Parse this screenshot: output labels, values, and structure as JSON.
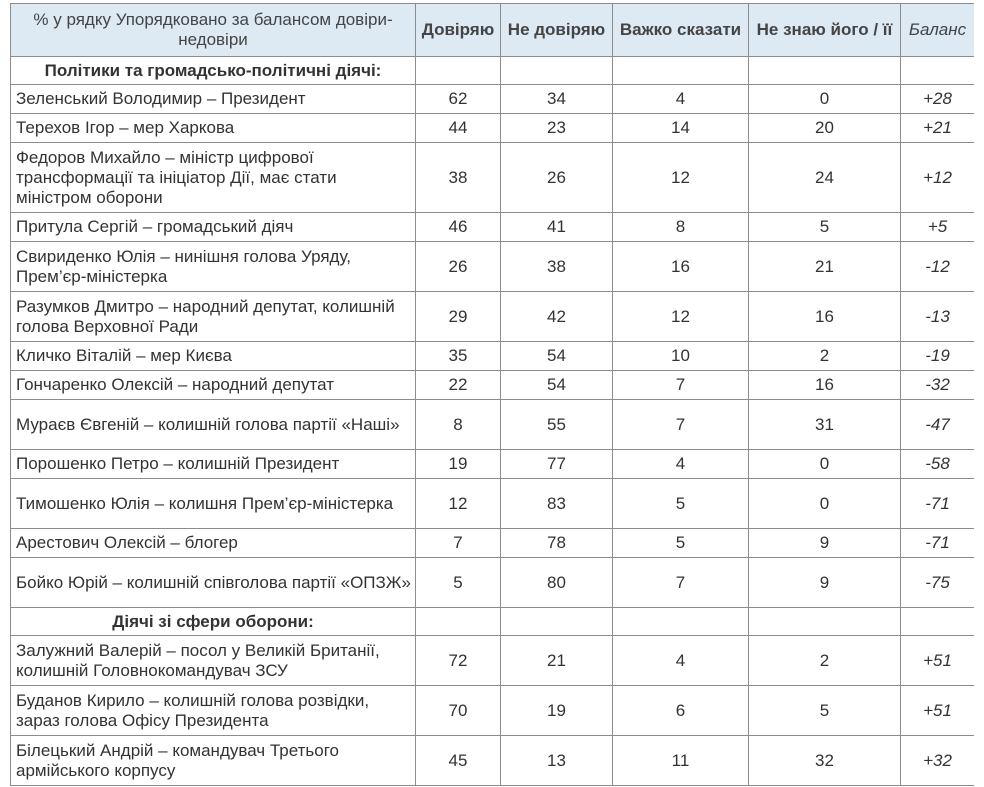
{
  "table": {
    "header_label": "% у рядку Упорядковано за балансом довіри-недовіри",
    "columns": [
      "Довіряю",
      "Не довіряю",
      "Важко сказати",
      "Не знаю його / її",
      "Баланс"
    ]
  },
  "sections": [
    {
      "title": "Політики та громадсько-політичні діячі:",
      "rows": [
        {
          "name": "Зеленський Володимир – Президент",
          "values": [
            "62",
            "34",
            "4",
            "0"
          ],
          "balance": "+28"
        },
        {
          "name": "Терехов Ігор – мер Харкова",
          "values": [
            "44",
            "23",
            "14",
            "20"
          ],
          "balance": "+21"
        },
        {
          "name": "Федоров Михайло – міністр цифрової трансформації та ініціатор Дії, має стати міністром оборони",
          "values": [
            "38",
            "26",
            "12",
            "24"
          ],
          "balance": "+12"
        },
        {
          "name": "Притула Сергій – громадський діяч",
          "values": [
            "46",
            "41",
            "8",
            "5"
          ],
          "balance": "+5"
        },
        {
          "name": "Свириденко Юлія – нинішня голова Уряду, Прем’єр-міністерка",
          "values": [
            "26",
            "38",
            "16",
            "21"
          ],
          "balance": "-12"
        },
        {
          "name": "Разумков Дмитро – народний депутат, колишній голова Верховної Ради",
          "values": [
            "29",
            "42",
            "12",
            "16"
          ],
          "balance": "-13"
        },
        {
          "name": "Кличко Віталій – мер Києва",
          "values": [
            "35",
            "54",
            "10",
            "2"
          ],
          "balance": "-19"
        },
        {
          "name": "Гончаренко Олексій – народний депутат",
          "values": [
            "22",
            "54",
            "7",
            "16"
          ],
          "balance": "-32"
        },
        {
          "name": "Мураєв Євгеній – колишній голова партії «Наші»",
          "values": [
            "8",
            "55",
            "7",
            "31"
          ],
          "balance": "-47"
        },
        {
          "name": "Порошенко Петро – колишній Президент",
          "values": [
            "19",
            "77",
            "4",
            "0"
          ],
          "balance": "-58"
        },
        {
          "name": "Тимошенко Юлія – колишня Прем’єр-міністерка",
          "values": [
            "12",
            "83",
            "5",
            "0"
          ],
          "balance": "-71"
        },
        {
          "name": "Арестович Олексій – блогер",
          "values": [
            "7",
            "78",
            "5",
            "9"
          ],
          "balance": "-71"
        },
        {
          "name": "Бойко Юрій – колишній співголова партії «ОПЗЖ»",
          "values": [
            "5",
            "80",
            "7",
            "9"
          ],
          "balance": "-75"
        }
      ]
    },
    {
      "title": "Діячі зі сфери оборони:",
      "rows": [
        {
          "name": "Залужний Валерій – посол у Великій Британії, колишній Головнокомандувач ЗСУ",
          "values": [
            "72",
            "21",
            "4",
            "2"
          ],
          "balance": "+51"
        },
        {
          "name": "Буданов Кирило – колишній голова розвідки, зараз голова Офісу Президента",
          "values": [
            "70",
            "19",
            "6",
            "5"
          ],
          "balance": "+51"
        },
        {
          "name": "Білецький Андрій – командувач Третього армійського корпусу",
          "values": [
            "45",
            "13",
            "11",
            "32"
          ],
          "balance": "+32"
        }
      ]
    }
  ]
}
